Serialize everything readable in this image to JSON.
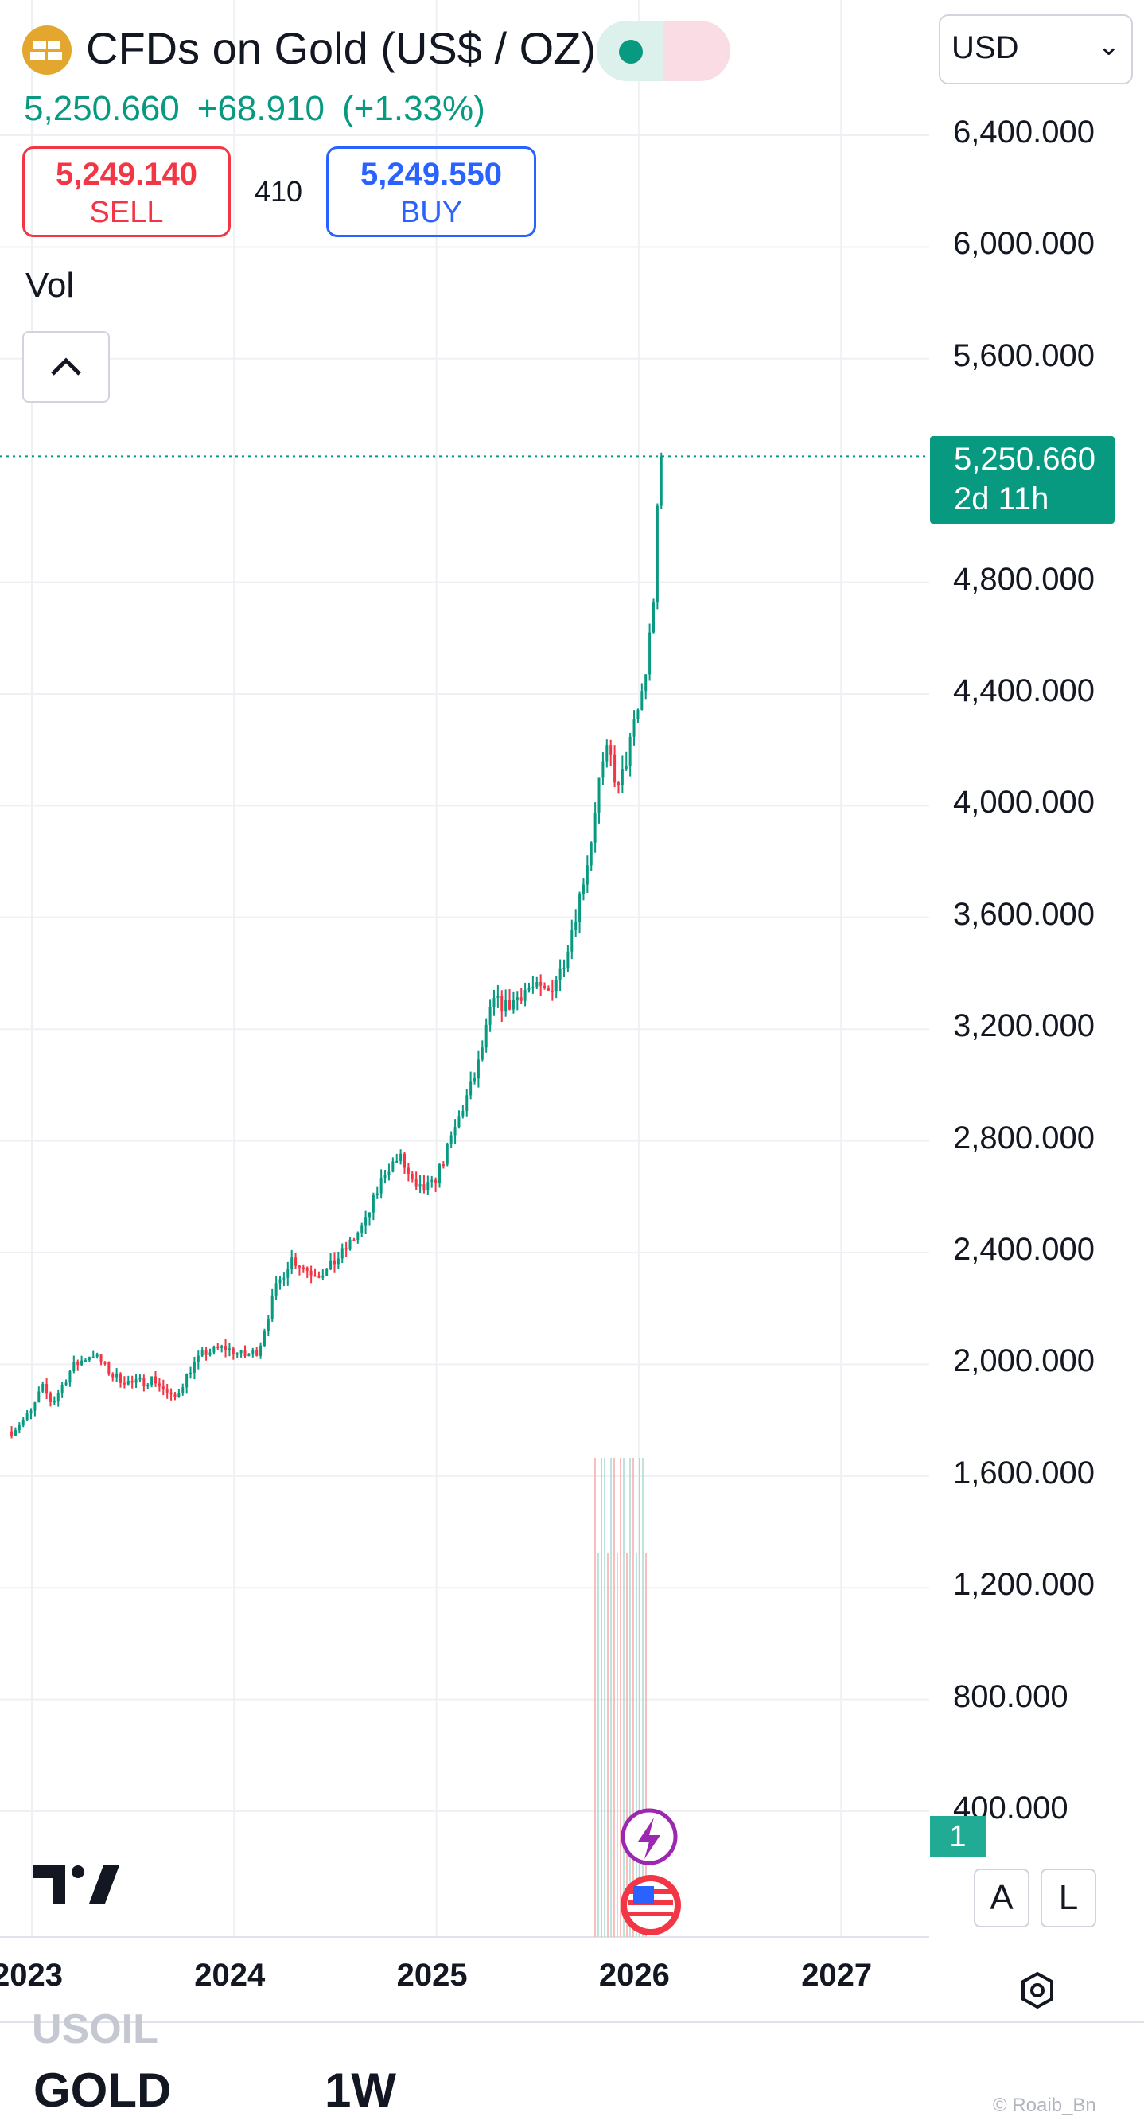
{
  "header": {
    "title": "CFDs on Gold (US$ / OZ)",
    "last_price": "5,250.660",
    "change": "+68.910",
    "change_pct": "(+1.33%)",
    "sell_price": "5,249.140",
    "sell_label": "SELL",
    "spread": "410",
    "buy_price": "5,249.550",
    "buy_label": "BUY",
    "vol_label": "Vol",
    "currency": "USD"
  },
  "price_tag": {
    "price": "5,250.660",
    "countdown": "2d 11h"
  },
  "series_count_badge": "1",
  "scale_buttons": {
    "auto": "A",
    "log": "L"
  },
  "bottom_bar": {
    "ticker_faded": "USOIL",
    "ticker": "GOLD",
    "interval": "1W",
    "watermark": "© Roaib_Bn"
  },
  "colors": {
    "up": "#089981",
    "down": "#f23645",
    "grid": "#eef0f3",
    "sell": "#f23645",
    "buy": "#2962ff"
  },
  "icons": [
    "gold-bars-icon",
    "market-open-dot-icon",
    "wave-icon",
    "chevron-down-icon",
    "chevron-up-icon",
    "tradingview-logo-icon",
    "lightning-icon",
    "us-flag-icon",
    "settings-hexagon-icon",
    "pencil-icon",
    "trend-line-icon",
    "more-dots-icon",
    "undo-icon"
  ],
  "chart_data": {
    "type": "candlestick",
    "interval": "1W",
    "y_ticks": [
      "6,400.000",
      "6,000.000",
      "5,600.000",
      "4,800.000",
      "4,400.000",
      "4,000.000",
      "3,600.000",
      "3,200.000",
      "2,800.000",
      "2,400.000",
      "2,000.000",
      "1,600.000",
      "1,200.000",
      "800.000",
      "400.000"
    ],
    "x_ticks": [
      "2023",
      "2024",
      "2025",
      "2026",
      "2027"
    ],
    "ylim": [
      0,
      6600
    ],
    "last_value": 5250.66,
    "price_path": [
      [
        2022.9,
        1760
      ],
      [
        2023.0,
        1830
      ],
      [
        2023.05,
        1920
      ],
      [
        2023.1,
        1860
      ],
      [
        2023.2,
        1990
      ],
      [
        2023.3,
        2040
      ],
      [
        2023.4,
        1960
      ],
      [
        2023.5,
        1930
      ],
      [
        2023.6,
        1950
      ],
      [
        2023.7,
        1870
      ],
      [
        2023.78,
        1980
      ],
      [
        2023.85,
        2040
      ],
      [
        2023.95,
        2060
      ],
      [
        2024.05,
        2030
      ],
      [
        2024.12,
        2050
      ],
      [
        2024.2,
        2260
      ],
      [
        2024.28,
        2380
      ],
      [
        2024.38,
        2330
      ],
      [
        2024.45,
        2330
      ],
      [
        2024.55,
        2410
      ],
      [
        2024.65,
        2510
      ],
      [
        2024.75,
        2700
      ],
      [
        2024.82,
        2740
      ],
      [
        2024.9,
        2620
      ],
      [
        2024.98,
        2640
      ],
      [
        2025.05,
        2760
      ],
      [
        2025.12,
        2900
      ],
      [
        2025.2,
        3050
      ],
      [
        2025.28,
        3300
      ],
      [
        2025.35,
        3280
      ],
      [
        2025.45,
        3350
      ],
      [
        2025.55,
        3330
      ],
      [
        2025.62,
        3420
      ],
      [
        2025.7,
        3650
      ],
      [
        2025.76,
        3850
      ],
      [
        2025.8,
        4080
      ],
      [
        2025.85,
        4200
      ],
      [
        2025.9,
        4050
      ],
      [
        2025.95,
        4200
      ],
      [
        2026.0,
        4350
      ],
      [
        2026.04,
        4500
      ],
      [
        2026.08,
        4800
      ],
      [
        2026.1,
        5180
      ],
      [
        2026.13,
        5250.66
      ]
    ]
  }
}
